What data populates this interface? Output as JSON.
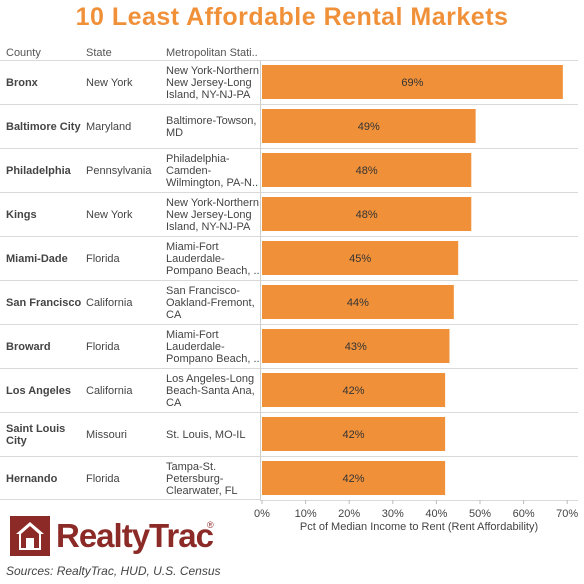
{
  "title": "10 Least Affordable Rental Markets",
  "columns": {
    "county": "County",
    "state": "State",
    "metro": "Metropolitan Stati.."
  },
  "rows": [
    {
      "county": "Bronx",
      "state": "New York",
      "metro": "New York-Northern New Jersey-Long Island, NY-NJ-PA",
      "value": 69,
      "label": "69%"
    },
    {
      "county": "Baltimore City",
      "state": "Maryland",
      "metro": "Baltimore-Towson, MD",
      "value": 49,
      "label": "49%"
    },
    {
      "county": "Philadelphia",
      "state": "Pennsylvania",
      "metro": "Philadelphia-Camden-Wilmington, PA-N..",
      "value": 48,
      "label": "48%"
    },
    {
      "county": "Kings",
      "state": "New York",
      "metro": "New York-Northern New Jersey-Long Island, NY-NJ-PA",
      "value": 48,
      "label": "48%"
    },
    {
      "county": "Miami-Dade",
      "state": "Florida",
      "metro": "Miami-Fort Lauderdale-Pompano Beach, ..",
      "value": 45,
      "label": "45%"
    },
    {
      "county": "San Francisco",
      "state": "California",
      "metro": "San Francisco-Oakland-Fremont, CA",
      "value": 44,
      "label": "44%"
    },
    {
      "county": "Broward",
      "state": "Florida",
      "metro": "Miami-Fort Lauderdale-Pompano Beach, ..",
      "value": 43,
      "label": "43%"
    },
    {
      "county": "Los Angeles",
      "state": "California",
      "metro": "Los Angeles-Long Beach-Santa Ana, CA",
      "value": 42,
      "label": "42%"
    },
    {
      "county": "Saint Louis City",
      "state": "Missouri",
      "metro": "St. Louis, MO-IL",
      "value": 42,
      "label": "42%"
    },
    {
      "county": "Hernando",
      "state": "Florida",
      "metro": "Tampa-St. Petersburg-Clearwater, FL",
      "value": 42,
      "label": "42%"
    }
  ],
  "chart_data": {
    "type": "bar",
    "orientation": "horizontal",
    "categories": [
      "Bronx",
      "Baltimore City",
      "Philadelphia",
      "Kings",
      "Miami-Dade",
      "San Francisco",
      "Broward",
      "Los Angeles",
      "Saint Louis City",
      "Hernando"
    ],
    "values": [
      69,
      49,
      48,
      48,
      45,
      44,
      43,
      42,
      42,
      42
    ],
    "data_labels": [
      "69%",
      "49%",
      "48%",
      "48%",
      "45%",
      "44%",
      "43%",
      "42%",
      "42%",
      "42%"
    ],
    "xlabel": "Pct of Median Income to Rent (Rent Affordability)",
    "xlim": [
      0,
      70
    ],
    "xticks": [
      0,
      10,
      20,
      30,
      40,
      50,
      60,
      70
    ],
    "xtick_labels": [
      "0%",
      "10%",
      "20%",
      "30%",
      "40%",
      "50%",
      "60%",
      "70%"
    ],
    "grid": true,
    "bar_color": "#f0913a"
  },
  "logo_text": "RealtyTrac",
  "logo_reg": "®",
  "sources": "Sources: RealtyTrac, HUD, U.S. Census"
}
